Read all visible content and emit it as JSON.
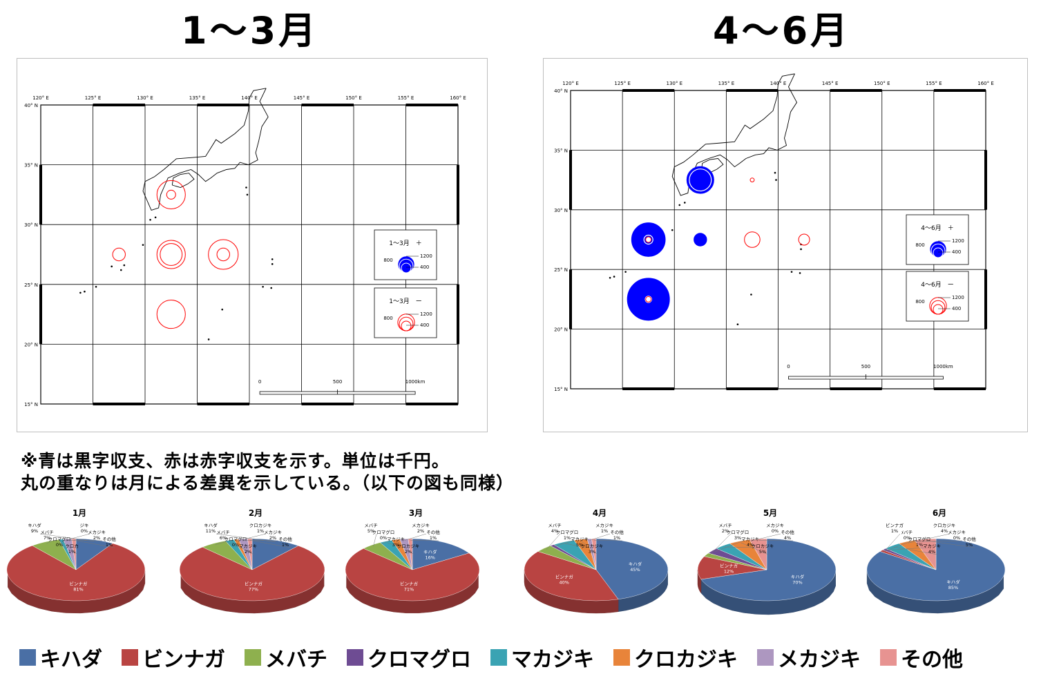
{
  "headings": {
    "left": "1～3月",
    "right": "4～6月"
  },
  "maps": [
    {
      "lat_labels": [
        "40° N",
        "35° N",
        "30° N",
        "25° N",
        "20° N",
        "15° N"
      ],
      "lon_labels": [
        "120° E",
        "125° E",
        "130° E",
        "135° E",
        "140° E",
        "145° E",
        "150° E",
        "155° E",
        "160° E"
      ],
      "scale_labels": [
        "0",
        "500",
        "1000km"
      ],
      "legend_plus": {
        "title": "1～3月　＋",
        "v800": "800",
        "v1200": "1200",
        "v400": "400"
      },
      "legend_minus": {
        "title": "1～3月　ー",
        "v800": "800",
        "v1200": "1200",
        "v400": "400"
      },
      "circles": [
        {
          "lon": 132.5,
          "lat": 32.5,
          "value": -1000,
          "nested": [
            -100
          ]
        },
        {
          "lon": 127.5,
          "lat": 27.5,
          "value": -200
        },
        {
          "lon": 132.5,
          "lat": 27.5,
          "value": -1000,
          "nested": [
            -600
          ]
        },
        {
          "lon": 137.5,
          "lat": 27.5,
          "value": -1100,
          "nested": [
            -200
          ]
        },
        {
          "lon": 132.5,
          "lat": 22.5,
          "value": -1000
        }
      ]
    },
    {
      "lat_labels": [
        "40° N",
        "35° N",
        "30° N",
        "25° N",
        "20° N",
        "15° N"
      ],
      "lon_labels": [
        "120° E",
        "125° E",
        "130° E",
        "135° E",
        "140° E",
        "145° E",
        "150° E",
        "155° E",
        "160° E"
      ],
      "scale_labels": [
        "0",
        "500",
        "1000km"
      ],
      "legend_plus": {
        "title": "4～6月　＋",
        "v800": "800",
        "v1200": "1200",
        "v400": "400"
      },
      "legend_minus": {
        "title": "4～6月　ー",
        "v800": "800",
        "v1200": "1200",
        "v400": "400"
      },
      "circles": [
        {
          "lon": 132.5,
          "lat": 32.5,
          "value": 900,
          "nested": [
            600
          ]
        },
        {
          "lon": 127.5,
          "lat": 27.5,
          "value": 1400,
          "nested": [
            100
          ]
        },
        {
          "lon": 132.5,
          "lat": 27.5,
          "value": 200
        },
        {
          "lon": 137.5,
          "lat": 27.5,
          "value": -300
        },
        {
          "lon": 142.5,
          "lat": 27.5,
          "value": -150
        },
        {
          "lon": 137.5,
          "lat": 32.5,
          "value": -20
        },
        {
          "lon": 127.5,
          "lat": 22.5,
          "value": 2200,
          "nested": [
            50
          ]
        }
      ]
    }
  ],
  "notes": {
    "line1": "※青は黒字収支、赤は赤字収支を示す。単位は千円。",
    "line2": "丸の重なりは月による差異を示している。（以下の図も同様）"
  },
  "colors": {
    "キハダ": "#4a6fa5",
    "ビンナガ": "#b94442",
    "メバチ": "#8eb04e",
    "クロマグロ": "#6e4c93",
    "マカジキ": "#3aa3b3",
    "クロカジキ": "#e8843a",
    "メカジキ": "#ad97c0",
    "その他": "#e79391",
    "profit": "#0000ff",
    "loss": "#ff0000"
  },
  "legend": [
    "キハダ",
    "ビンナガ",
    "メバチ",
    "クロマグロ",
    "マカジキ",
    "クロカジキ",
    "メカジキ",
    "その他"
  ],
  "chart_data": [
    {
      "type": "pie",
      "title": "1月",
      "labels": [
        "キハダ",
        "ビンナガ",
        "メバチ",
        "クロマグロ",
        "マカジキ",
        "クロカジキ",
        "メカジキ",
        "その他"
      ],
      "values": [
        9,
        81,
        7,
        0,
        1,
        0,
        2,
        1
      ],
      "value_labels": [
        "9%",
        "81%",
        "7%",
        "0%",
        "1%",
        "0%",
        "2%",
        "1%"
      ],
      "display_names": [
        "キハダ",
        "ビンナガ",
        "メバチ",
        "クロマグロ",
        "クロカ",
        "ジキ",
        "メカジキ",
        "その他"
      ]
    },
    {
      "type": "pie",
      "title": "2月",
      "labels": [
        "キハダ",
        "ビンナガ",
        "メバチ",
        "クロマグロ",
        "マカジキ",
        "クロカジキ",
        "メカジキ",
        "その他"
      ],
      "values": [
        11,
        77,
        6,
        0,
        2,
        1,
        2,
        1
      ],
      "value_labels": [
        "11%",
        "77%",
        "6%",
        "0%",
        "2%",
        "1%",
        "2%",
        "1%"
      ],
      "display_names": [
        "キハダ",
        "ビンナガ",
        "メバチ",
        "クロマグロ",
        "マカジキ",
        "クロカジキ",
        "メカジキ",
        "その他"
      ]
    },
    {
      "type": "pie",
      "title": "3月",
      "labels": [
        "キハダ",
        "ビンナガ",
        "メバチ",
        "クロマグロ",
        "マカジキ",
        "クロカジキ",
        "メカジキ",
        "その他"
      ],
      "values": [
        16,
        71,
        5,
        0,
        3,
        2,
        2,
        1
      ],
      "value_labels": [
        "16%",
        "71%",
        "5%",
        "0%",
        "3%",
        "2%",
        "2%",
        "1%"
      ],
      "display_names": [
        "キハダ",
        "ビンナガ",
        "メバチ",
        "クロマグロ",
        "マカジキ",
        "クロカジキ",
        "メカジキ",
        "その他"
      ]
    },
    {
      "type": "pie",
      "title": "4月",
      "labels": [
        "キハダ",
        "ビンナガ",
        "メバチ",
        "クロマグロ",
        "マカジキ",
        "クロカジキ",
        "メカジキ",
        "その他"
      ],
      "values": [
        45,
        40,
        4,
        1,
        5,
        3,
        1,
        1
      ],
      "value_labels": [
        "45%",
        "40%",
        "4%",
        "1%",
        "5%",
        "3%",
        "1%",
        "1%"
      ],
      "display_names": [
        "キハダ",
        "ビンナガ",
        "メバチ",
        "クロマグロ",
        "マカジキ",
        "クロカジキ",
        "メカジキ",
        "その他"
      ]
    },
    {
      "type": "pie",
      "title": "5月",
      "labels": [
        "キハダ",
        "ビンナガ",
        "メバチ",
        "クロマグロ",
        "マカジキ",
        "クロカジキ",
        "メカジキ",
        "その他"
      ],
      "values": [
        70,
        12,
        2,
        3,
        4,
        5,
        0,
        4
      ],
      "value_labels": [
        "70%",
        "12%",
        "2%",
        "3%",
        "4%",
        "5%",
        "0%",
        "4%"
      ],
      "display_names": [
        "キハダ",
        "ビンナガ",
        "メバチ",
        "クロマグロ",
        "マカジキ",
        "クロカジキ",
        "メカジキ",
        "その他"
      ]
    },
    {
      "type": "pie",
      "title": "6月",
      "labels": [
        "キハダ",
        "ビンナガ",
        "メバチ",
        "クロマグロ",
        "マカジキ",
        "クロカジキ",
        "メカジキ",
        "その他"
      ],
      "values": [
        85,
        1,
        0,
        1,
        4,
        4,
        0,
        5
      ],
      "value_labels": [
        "85%",
        "1%",
        "0%",
        "1%",
        "4%",
        "4%",
        "0%",
        "5%"
      ],
      "display_names": [
        "キハダ",
        "ビンナガ",
        "ﾒバチ",
        "クロマグロ",
        "マカジキ",
        "クロカジキ",
        "メカジキ",
        "その他"
      ]
    }
  ]
}
